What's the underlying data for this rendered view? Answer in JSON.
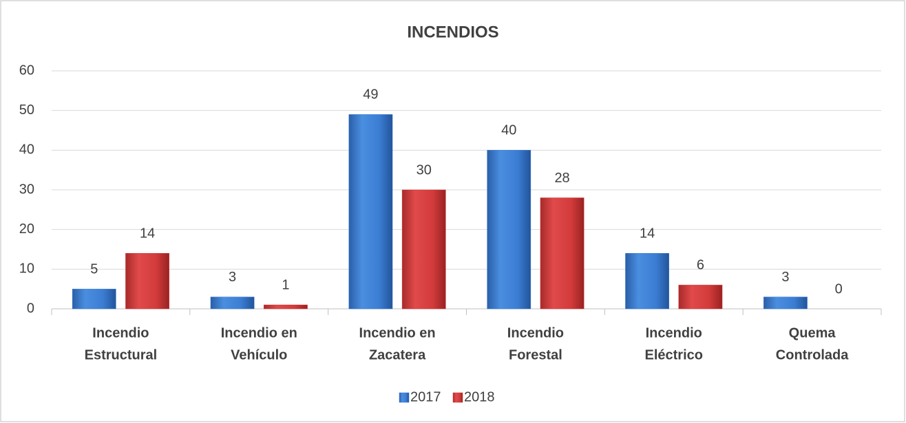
{
  "chart_data": {
    "type": "bar",
    "title": "INCENDIOS",
    "categories": [
      [
        "Incendio",
        "Estructural"
      ],
      [
        "Incendio en",
        "Vehículo"
      ],
      [
        "Incendio en",
        "Zacatera"
      ],
      [
        "Incendio",
        "Forestal"
      ],
      [
        "Incendio",
        "Eléctrico"
      ],
      [
        "Quema",
        "Controlada"
      ]
    ],
    "series": [
      {
        "name": "2017",
        "color": "#3b7dd3",
        "values": [
          5,
          3,
          49,
          40,
          14,
          3
        ]
      },
      {
        "name": "2018",
        "color": "#d33b3b",
        "values": [
          14,
          1,
          30,
          28,
          6,
          0
        ]
      }
    ],
    "ylim": [
      0,
      60
    ],
    "yticks": [
      0,
      10,
      20,
      30,
      40,
      50,
      60
    ],
    "grid": true,
    "legend": "bottom"
  }
}
